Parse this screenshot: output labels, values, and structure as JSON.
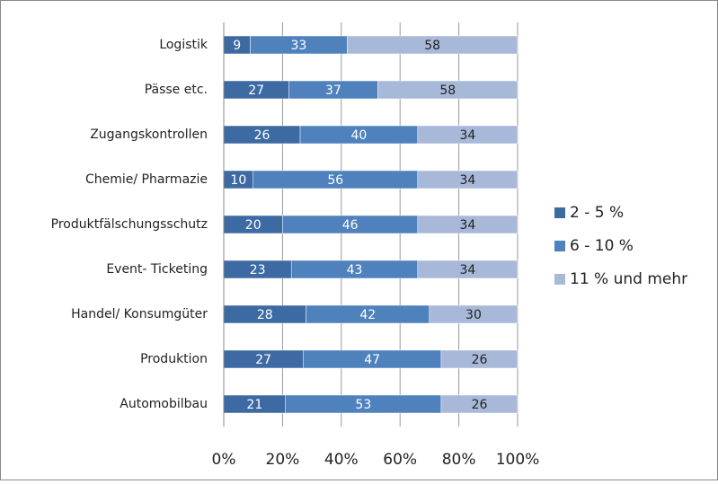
{
  "chart_data": {
    "type": "bar",
    "orientation": "horizontal",
    "stacking": "percent",
    "categories": [
      "Logistik",
      "Pässe etc.",
      "Zugangskontrollen",
      "Chemie/ Pharmazie",
      "Produktfälschungsschutz",
      "Event- Ticketing",
      "Handel/ Konsumgüter",
      "Produktion",
      "Automobilbau"
    ],
    "series": [
      {
        "name": "2 - 5 %",
        "color": "#3d6aa3",
        "values": [
          9,
          27,
          26,
          10,
          20,
          23,
          28,
          27,
          21
        ]
      },
      {
        "name": "6 - 10 %",
        "color": "#4f81bd",
        "values": [
          33,
          37,
          40,
          56,
          46,
          43,
          42,
          47,
          53
        ]
      },
      {
        "name": "11 % und mehr",
        "color": "#a8b8d8",
        "values": [
          58,
          58,
          34,
          34,
          34,
          34,
          30,
          26,
          26
        ]
      }
    ],
    "xlim": [
      0,
      100
    ],
    "xticks": [
      {
        "value": 0,
        "label": "0%"
      },
      {
        "value": 20,
        "label": "20%"
      },
      {
        "value": 40,
        "label": "40%"
      },
      {
        "value": 60,
        "label": "60%"
      },
      {
        "value": 80,
        "label": "80%"
      },
      {
        "value": 100,
        "label": "100%"
      }
    ],
    "grid": true,
    "legend": "right"
  }
}
